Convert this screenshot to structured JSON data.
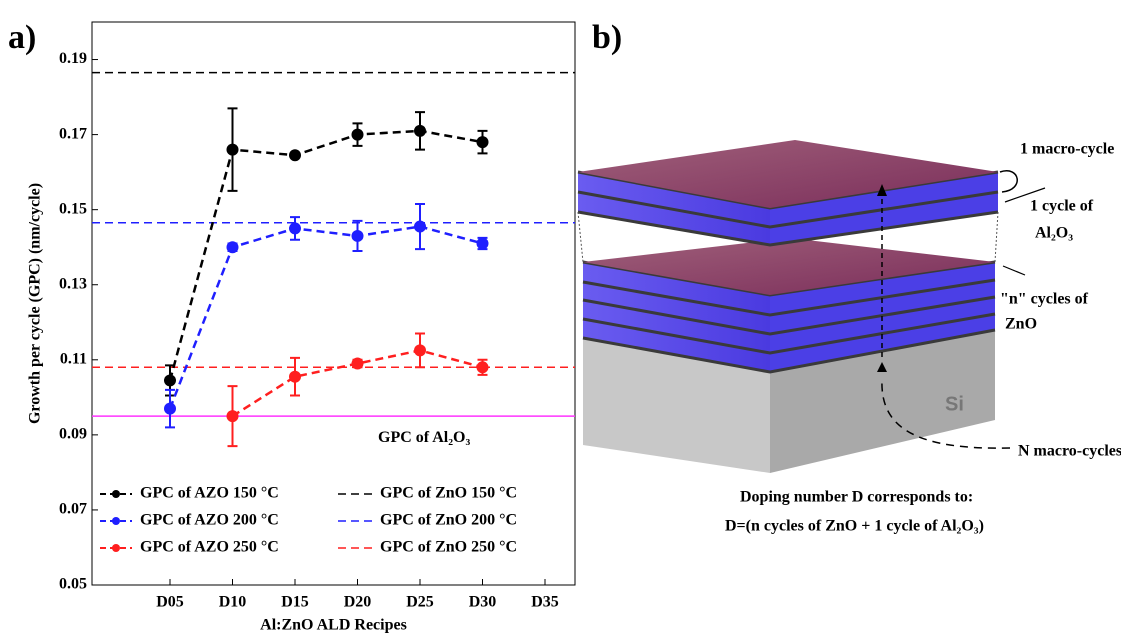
{
  "panel_a": {
    "label": "a)"
  },
  "panel_b": {
    "label": "b)"
  },
  "chart_data": {
    "type": "line",
    "xlabel": "Al:ZnO ALD Recipes",
    "ylabel": "Growth per cycle (GPC) (nm/cycle)",
    "categories": [
      "D05",
      "D10",
      "D15",
      "D20",
      "D25",
      "D30",
      "D35"
    ],
    "ylim": [
      0.05,
      0.2
    ],
    "yticks": [
      0.05,
      0.07,
      0.09,
      0.11,
      0.13,
      0.15,
      0.17,
      0.19
    ],
    "legend": "lower center",
    "series": [
      {
        "name": "GPC of AZO 150 °C",
        "color": "#000000",
        "values": [
          0.1045,
          0.166,
          0.1645,
          0.17,
          0.171,
          0.168,
          null
        ],
        "errors": [
          0.004,
          0.011,
          0.0005,
          0.003,
          0.005,
          0.003,
          null
        ]
      },
      {
        "name": "GPC of AZO 200 °C",
        "color": "#1f1fff",
        "values": [
          0.097,
          0.14,
          0.145,
          0.143,
          0.1455,
          0.141,
          null
        ],
        "errors": [
          0.005,
          0.001,
          0.003,
          0.004,
          0.006,
          0.0015,
          null
        ]
      },
      {
        "name": "GPC of AZO 250 °C",
        "color": "#ff1f1f",
        "values": [
          null,
          0.095,
          0.1055,
          0.109,
          0.1125,
          0.108,
          null
        ],
        "errors": [
          null,
          0.008,
          0.005,
          0.001,
          0.0045,
          0.002,
          null
        ]
      }
    ],
    "reference_lines": [
      {
        "name": "GPC of ZnO 150 °C",
        "color": "#000000",
        "value": 0.1865,
        "dashed": true
      },
      {
        "name": "GPC of ZnO 200 °C",
        "color": "#1f1fff",
        "value": 0.1465,
        "dashed": true
      },
      {
        "name": "GPC of ZnO 250 °C",
        "color": "#ff1f1f",
        "value": 0.108,
        "dashed": true
      },
      {
        "color": "#ff33ff",
        "value": 0.095,
        "dashed": false,
        "annotation": "GPC of Al₂O₃"
      }
    ]
  },
  "diagram": {
    "macro_cycle": "1 macro-cycle",
    "al_cycle": [
      "1 cycle of",
      "Al₂O₃"
    ],
    "zno_cycles": [
      "\"n\" cycles of",
      "ZnO"
    ],
    "substrate": "Si",
    "n_macro": "N macro-cycles",
    "caption": [
      "Doping number D corresponds to:",
      "D=(n cycles of ZnO + 1 cycle of Al₂O₃)"
    ]
  }
}
